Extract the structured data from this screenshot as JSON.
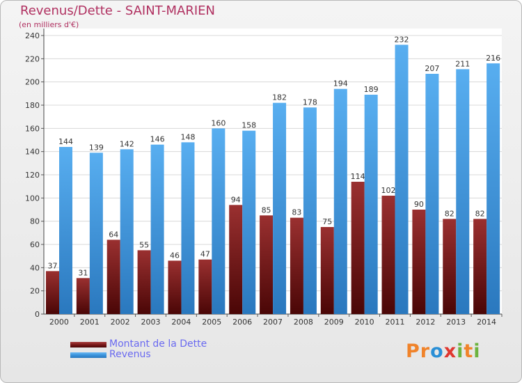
{
  "chart_data": {
    "type": "bar",
    "title": "Revenus/Dette - SAINT-MARIEN",
    "subtitle": "(en milliers d'€)",
    "categories": [
      "2000",
      "2001",
      "2002",
      "2003",
      "2004",
      "2005",
      "2006",
      "2007",
      "2008",
      "2009",
      "2010",
      "2011",
      "2012",
      "2013",
      "2014"
    ],
    "series": [
      {
        "name": "Montant de la Dette",
        "color": "#7a1818",
        "values": [
          37,
          31,
          64,
          55,
          46,
          47,
          94,
          85,
          83,
          75,
          114,
          102,
          90,
          82,
          82
        ]
      },
      {
        "name": "Revenus",
        "color": "#3a93db",
        "values": [
          144,
          139,
          142,
          146,
          148,
          160,
          158,
          182,
          178,
          194,
          189,
          232,
          207,
          211,
          216
        ]
      }
    ],
    "ylim": [
      0,
      240
    ],
    "yticks": [
      0,
      20,
      40,
      60,
      80,
      100,
      120,
      140,
      160,
      180,
      200,
      220,
      240
    ],
    "grid": true,
    "legend": "bottom-left"
  },
  "logo": {
    "text": "Proxiti",
    "colors": [
      "#f0832a",
      "#2a8fd6",
      "#e0372f",
      "#6cb33f"
    ]
  }
}
